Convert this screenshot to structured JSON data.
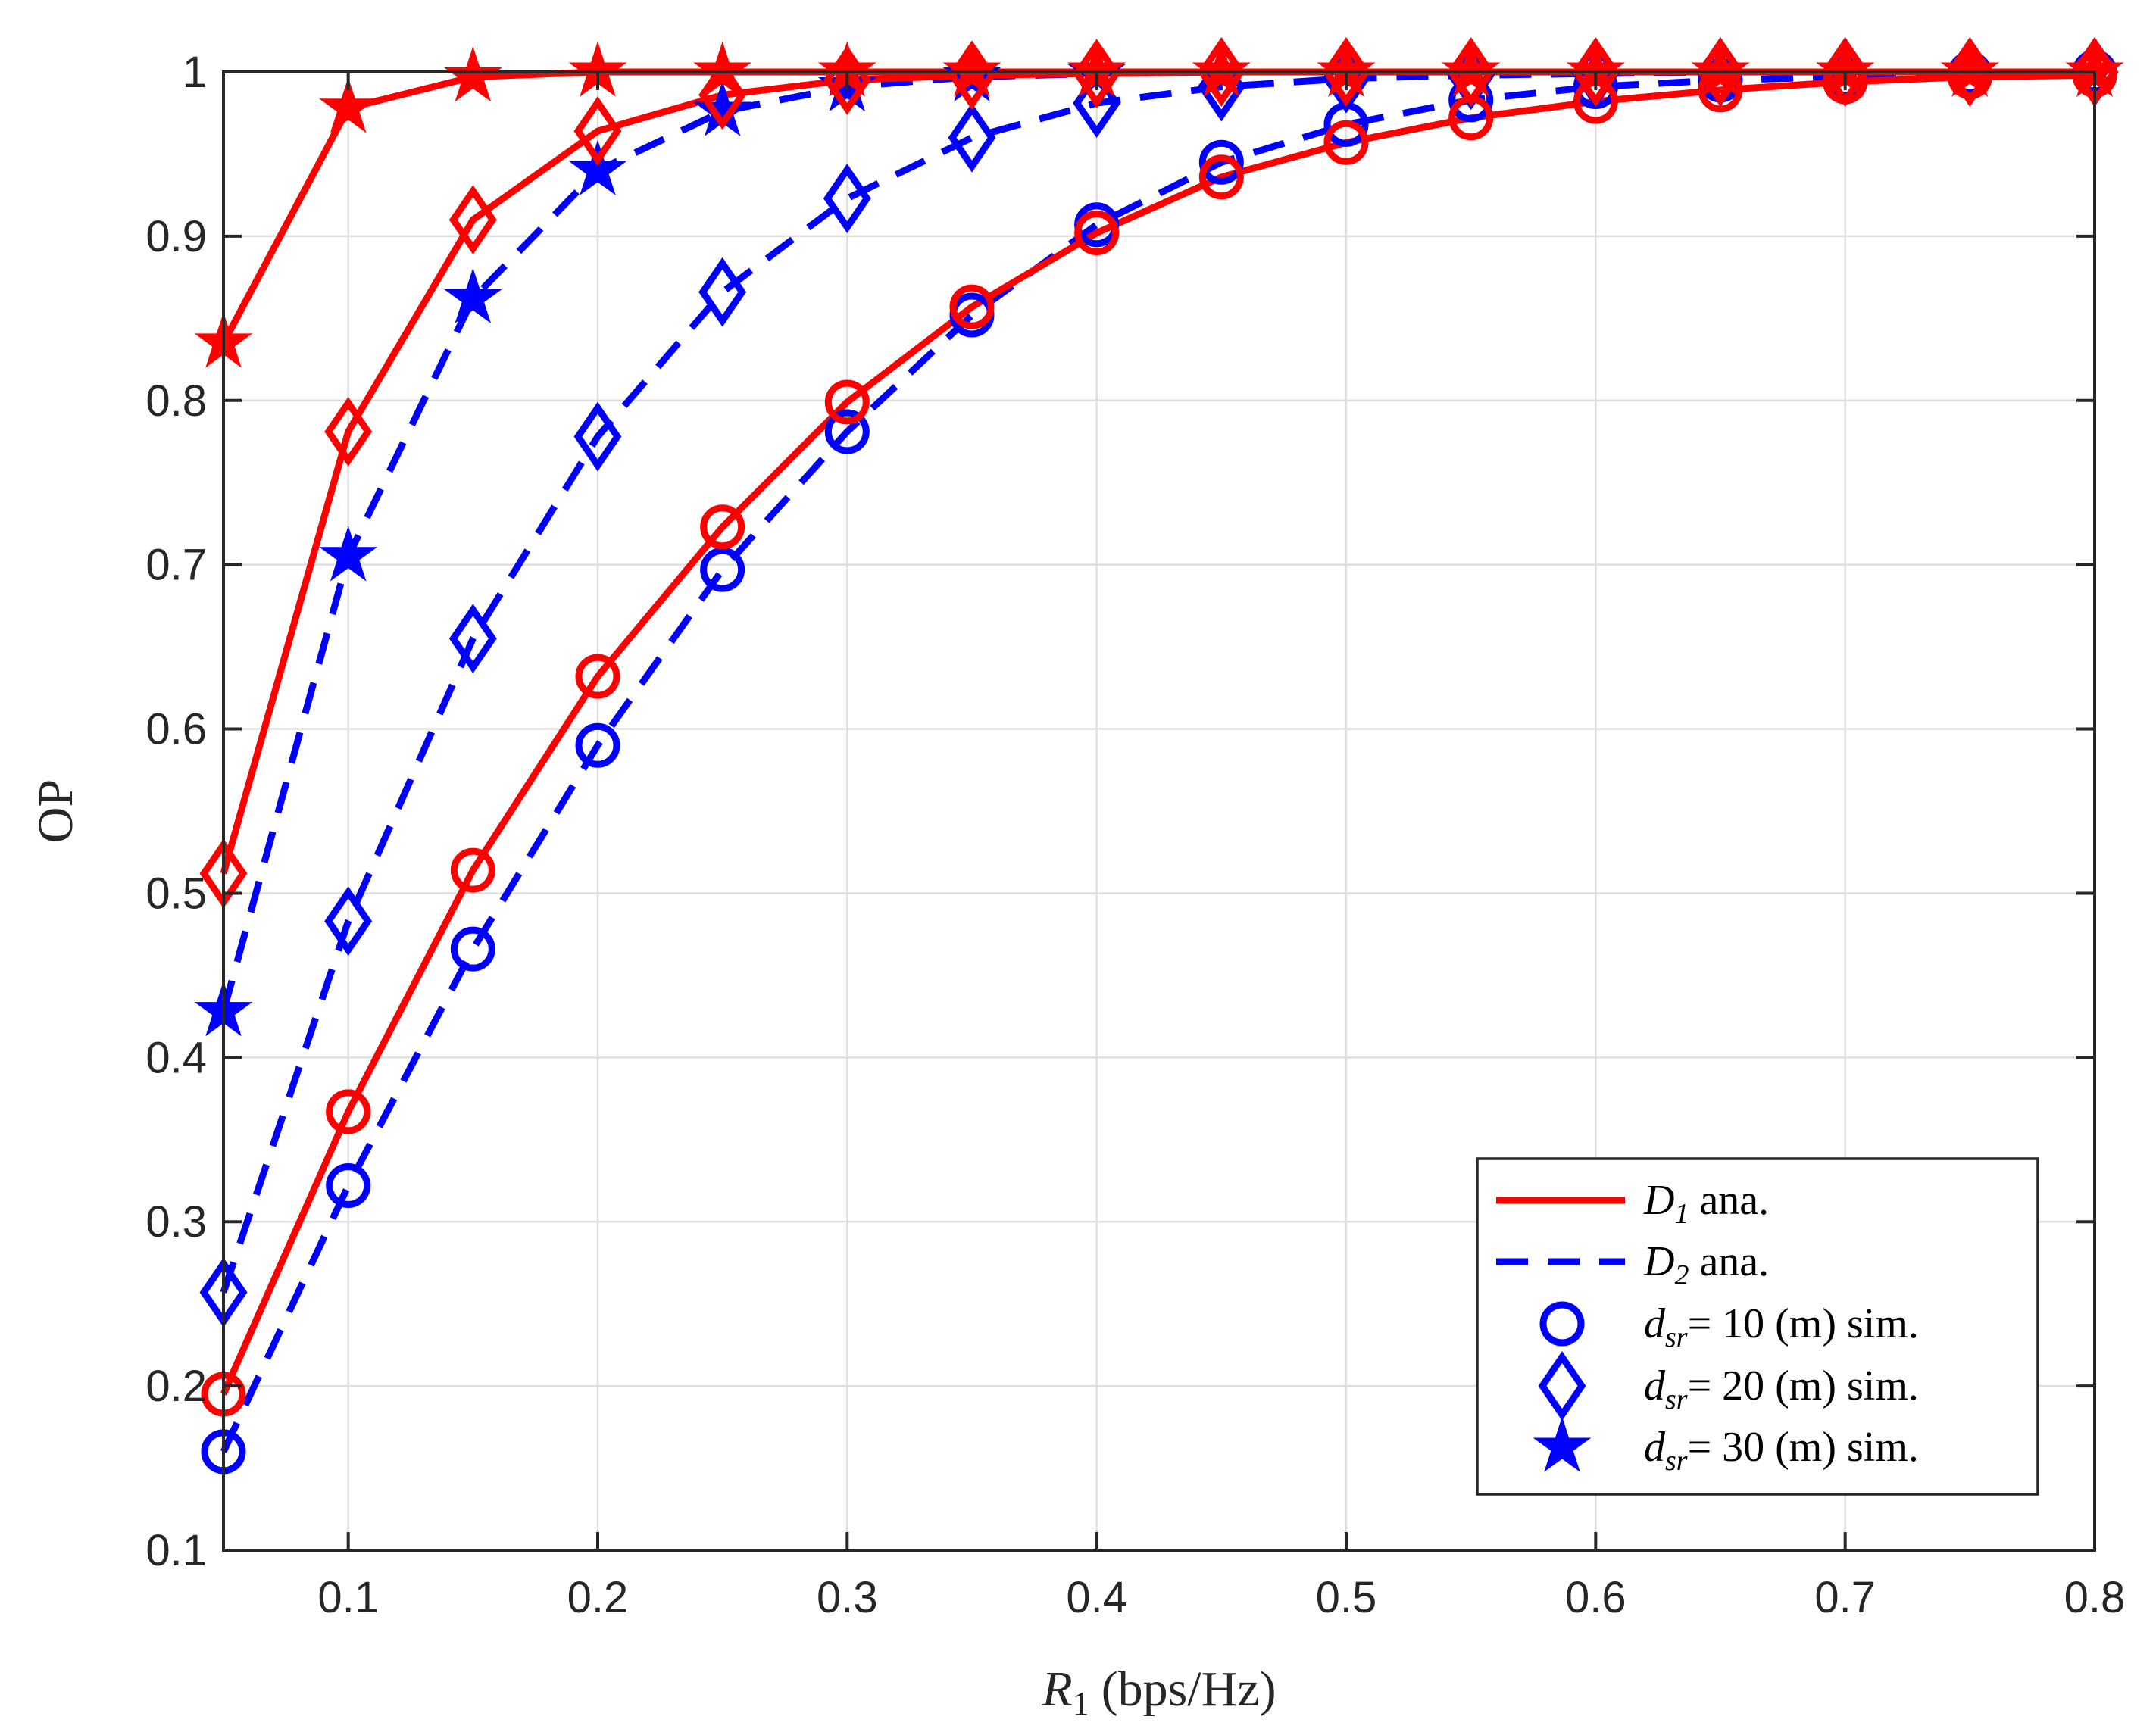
{
  "chart_data": {
    "type": "line",
    "title": "",
    "xlabel_var": "R",
    "xlabel_sub": "1",
    "xlabel_unit": "(bps/Hz)",
    "ylabel": "OP",
    "xlim": [
      0.05,
      0.8
    ],
    "ylim": [
      0.1,
      1.0
    ],
    "xticks": [
      0.1,
      0.2,
      0.3,
      0.4,
      0.5,
      0.6,
      0.7,
      0.8
    ],
    "yticks": [
      0.1,
      0.2,
      0.3,
      0.4,
      0.5,
      0.6,
      0.7,
      0.8,
      0.9,
      1.0
    ],
    "xtick_labels": [
      "0.1",
      "0.2",
      "0.3",
      "0.4",
      "0.5",
      "0.6",
      "0.7",
      "0.8"
    ],
    "ytick_labels": [
      "0.1",
      "0.2",
      "0.3",
      "0.4",
      "0.5",
      "0.6",
      "0.7",
      "0.8",
      "0.9",
      "1"
    ],
    "grid": true,
    "legend_position": "bottom-right",
    "x": [
      0.05,
      0.1,
      0.15,
      0.2,
      0.25,
      0.3,
      0.35,
      0.4,
      0.45,
      0.5,
      0.55,
      0.6,
      0.65,
      0.7,
      0.75,
      0.8
    ],
    "series": [
      {
        "name": "D1 ana., dsr = 10 m",
        "device": "D1",
        "dsr": 10,
        "color": "#ff0000",
        "line": "solid",
        "marker": "circle",
        "values": [
          0.195,
          0.367,
          0.514,
          0.632,
          0.723,
          0.799,
          0.857,
          0.902,
          0.936,
          0.957,
          0.972,
          0.982,
          0.989,
          0.994,
          0.997,
          0.998
        ]
      },
      {
        "name": "D1 ana., dsr = 20 m",
        "device": "D1",
        "dsr": 20,
        "color": "#ff0000",
        "line": "solid",
        "marker": "diamond",
        "values": [
          0.512,
          0.781,
          0.91,
          0.964,
          0.986,
          0.995,
          0.998,
          0.999,
          1.0,
          1.0,
          1.0,
          1.0,
          1.0,
          1.0,
          1.0,
          1.0
        ]
      },
      {
        "name": "D1 ana., dsr = 30 m",
        "device": "D1",
        "dsr": 30,
        "color": "#ff0000",
        "line": "solid",
        "marker": "star",
        "values": [
          0.835,
          0.978,
          0.997,
          1.0,
          1.0,
          1.0,
          1.0,
          1.0,
          1.0,
          1.0,
          1.0,
          1.0,
          1.0,
          1.0,
          1.0,
          1.0
        ]
      },
      {
        "name": "D2 ana., dsr = 10 m",
        "device": "D2",
        "dsr": 10,
        "color": "#0000ff",
        "line": "dashed",
        "marker": "circle",
        "values": [
          0.16,
          0.322,
          0.466,
          0.59,
          0.697,
          0.781,
          0.852,
          0.907,
          0.945,
          0.968,
          0.983,
          0.991,
          0.995,
          0.997,
          0.999,
          1.0
        ]
      },
      {
        "name": "D2 ana., dsr = 20 m",
        "device": "D2",
        "dsr": 20,
        "color": "#0000ff",
        "line": "dashed",
        "marker": "diamond",
        "values": [
          0.257,
          0.483,
          0.655,
          0.778,
          0.866,
          0.923,
          0.96,
          0.981,
          0.991,
          0.996,
          0.998,
          0.999,
          1.0,
          1.0,
          1.0,
          1.0
        ]
      },
      {
        "name": "D2 ana., dsr = 30 m",
        "device": "D2",
        "dsr": 30,
        "color": "#0000ff",
        "line": "dashed",
        "marker": "star",
        "values": [
          0.428,
          0.705,
          0.862,
          0.94,
          0.976,
          0.991,
          0.997,
          0.999,
          1.0,
          1.0,
          1.0,
          1.0,
          1.0,
          1.0,
          1.0,
          1.0
        ]
      }
    ],
    "legend": [
      {
        "kind": "line",
        "style": "solid",
        "color": "#ff0000",
        "var": "D",
        "sub": "1",
        "rest": " ana."
      },
      {
        "kind": "line",
        "style": "dashed",
        "color": "#0000ff",
        "var": "D",
        "sub": "2",
        "rest": " ana."
      },
      {
        "kind": "marker",
        "marker": "circle",
        "color": "#0000ff",
        "var": "d",
        "sub": "sr",
        "rest": "= 10 (m) sim."
      },
      {
        "kind": "marker",
        "marker": "diamond",
        "color": "#0000ff",
        "var": "d",
        "sub": "sr",
        "rest": "= 20 (m) sim."
      },
      {
        "kind": "marker",
        "marker": "star",
        "color": "#0000ff",
        "var": "d",
        "sub": "sr",
        "rest": "= 30 (m) sim."
      }
    ]
  }
}
